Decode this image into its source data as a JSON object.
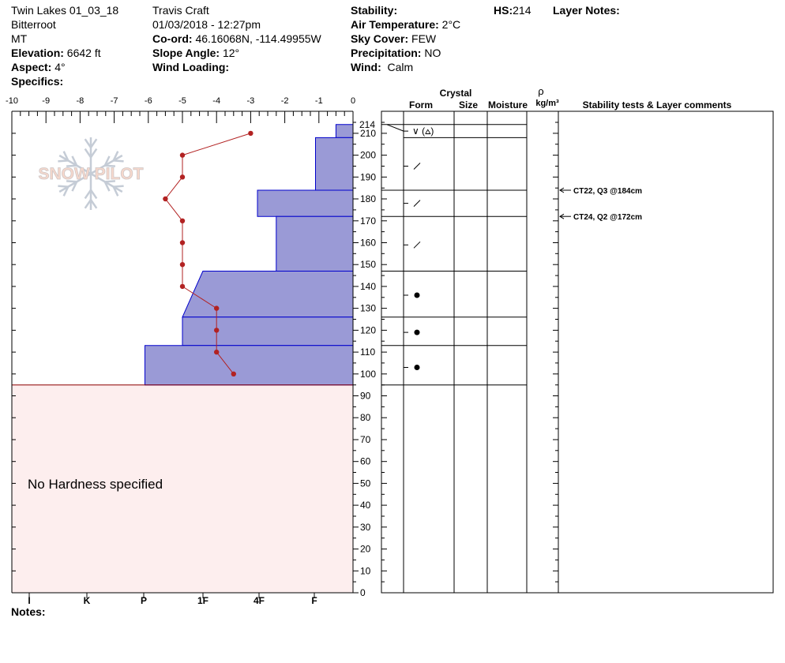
{
  "header": {
    "site": "Twin Lakes 01_03_18",
    "range": "Bitterroot",
    "state": "MT",
    "elevation_label": "Elevation:",
    "elevation_value": "6642 ft",
    "aspect_label": "Aspect:",
    "aspect_value": "4°",
    "specifics_label": "Specifics:",
    "observer": "Travis  Craft",
    "datetime": "01/03/2018 - 12:27pm",
    "coord_label": "Co-ord:",
    "coord_value": "46.16068N, -114.49955W",
    "slope_label": "Slope Angle:",
    "slope_value": "12°",
    "wind_loading_label": "Wind Loading:",
    "stability_label": "Stability:",
    "air_temp_label": "Air Temperature:",
    "air_temp_value": "2°C",
    "sky_label": "Sky Cover:",
    "sky_value": "FEW",
    "precip_label": "Precipitation:",
    "precip_value": "NO",
    "wind_label": "Wind:",
    "wind_value": "Calm",
    "hs_label": "HS:",
    "hs_value": "214",
    "layer_notes_label": "Layer Notes:"
  },
  "columns": {
    "crystal": "Crystal",
    "form": "Form",
    "size": "Size",
    "moisture": "Moisture",
    "rho": "ρ",
    "density_unit": "kg/m³",
    "stability": "Stability tests & Layer comments"
  },
  "no_hardness_text": "No Hardness specified",
  "notes_label": "Notes:",
  "logo_text": "SNOW PILOT",
  "colors": {
    "hardness_fill": "#9a9ad6",
    "hardness_stroke": "#0000cc",
    "temp_line": "#b22222",
    "no_hardness_bg": "#fdeeee"
  },
  "chart_data": {
    "type": "snow_profile",
    "temperature_axis": {
      "ticks": [
        "-10",
        "-9",
        "-8",
        "-7",
        "-6",
        "-5",
        "-4",
        "-3",
        "-2",
        "-1",
        "0"
      ],
      "range": [
        -10,
        0
      ]
    },
    "hardness_axis": [
      "I",
      "K",
      "P",
      "1F",
      "4F",
      "F"
    ],
    "height_axis": {
      "range": [
        0,
        220
      ],
      "ticks": [
        "0",
        "10",
        "20",
        "30",
        "40",
        "50",
        "60",
        "70",
        "80",
        "90",
        "100",
        "110",
        "120",
        "130",
        "140",
        "150",
        "160",
        "170",
        "180",
        "190",
        "200",
        "210"
      ],
      "top_label": "214"
    },
    "total_height": 214,
    "temperature_profile": [
      {
        "height": 210,
        "temp": -3
      },
      {
        "height": 200,
        "temp": -5
      },
      {
        "height": 190,
        "temp": -5
      },
      {
        "height": 180,
        "temp": -5.5
      },
      {
        "height": 170,
        "temp": -5
      },
      {
        "height": 160,
        "temp": -5
      },
      {
        "height": 150,
        "temp": -5
      },
      {
        "height": 140,
        "temp": -5
      },
      {
        "height": 130,
        "temp": -4
      },
      {
        "height": 120,
        "temp": -4
      },
      {
        "height": 110,
        "temp": -4
      },
      {
        "height": 100,
        "temp": -3.5
      }
    ],
    "hardness_layers": [
      {
        "bottom": 208,
        "top": 214,
        "hard_top": -0.5,
        "hard_bottom": -0.5
      },
      {
        "bottom": 184,
        "top": 208,
        "hard_top": -1.1,
        "hard_bottom": -1.1
      },
      {
        "bottom": 172,
        "top": 184,
        "hard_top": -2.8,
        "hard_bottom": -2.8
      },
      {
        "bottom": 147,
        "top": 172,
        "hard_top": -2.25,
        "hard_bottom": -2.25
      },
      {
        "bottom": 126,
        "top": 147,
        "hard_top": -4.4,
        "hard_bottom": -5
      },
      {
        "bottom": 113,
        "top": 126,
        "hard_top": -5,
        "hard_bottom": -5
      },
      {
        "bottom": 95,
        "top": 113,
        "hard_top": -6.1,
        "hard_bottom": -6.1
      }
    ],
    "no_hardness_range": [
      0,
      95
    ],
    "layer_boundaries": [
      214,
      208,
      184,
      172,
      147,
      126,
      113,
      95
    ],
    "grain_forms": [
      {
        "height": 211,
        "symbol": "∨ (⩟)"
      },
      {
        "height": 195,
        "symbol": "/"
      },
      {
        "height": 178,
        "symbol": "/"
      },
      {
        "height": 159,
        "symbol": "/"
      },
      {
        "height": 136,
        "symbol": "●"
      },
      {
        "height": 119,
        "symbol": "●"
      },
      {
        "height": 103,
        "symbol": "●"
      }
    ],
    "stability_tests": [
      {
        "height": 184,
        "text": "CT22, Q3 @184cm"
      },
      {
        "height": 172,
        "text": "CT24, Q2 @172cm"
      }
    ]
  }
}
